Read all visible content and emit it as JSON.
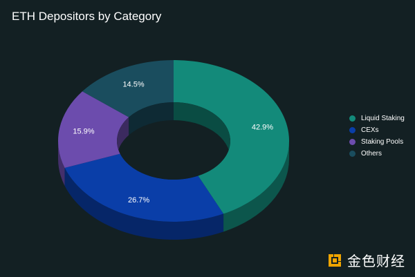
{
  "chart_data": {
    "type": "pie",
    "variant": "3d-donut",
    "title": "ETH Depositors by Category",
    "categories": [
      "Liquid Staking",
      "CEXs",
      "Staking Pools",
      "Others"
    ],
    "values": [
      42.9,
      26.7,
      15.9,
      14.5
    ],
    "value_labels": [
      "42.9%",
      "26.7%",
      "15.9%",
      "14.5%"
    ],
    "colors": [
      "#138a7a",
      "#0a3ea8",
      "#6c4cad",
      "#1a4d5e"
    ],
    "legend": "right",
    "start_at": "top, clockwise"
  },
  "legend": {
    "items": [
      {
        "label": "Liquid Staking",
        "color": "#138a7a"
      },
      {
        "label": "CEXs",
        "color": "#0a3ea8"
      },
      {
        "label": "Staking Pools",
        "color": "#6c4cad"
      },
      {
        "label": "Others",
        "color": "#1a4d5e"
      }
    ]
  },
  "watermark": {
    "text": "金色财经",
    "logo": "jinse-logo-icon",
    "logo_color": "#f0a500"
  },
  "colors": {
    "background": "#132023",
    "text": "#ffffff"
  }
}
